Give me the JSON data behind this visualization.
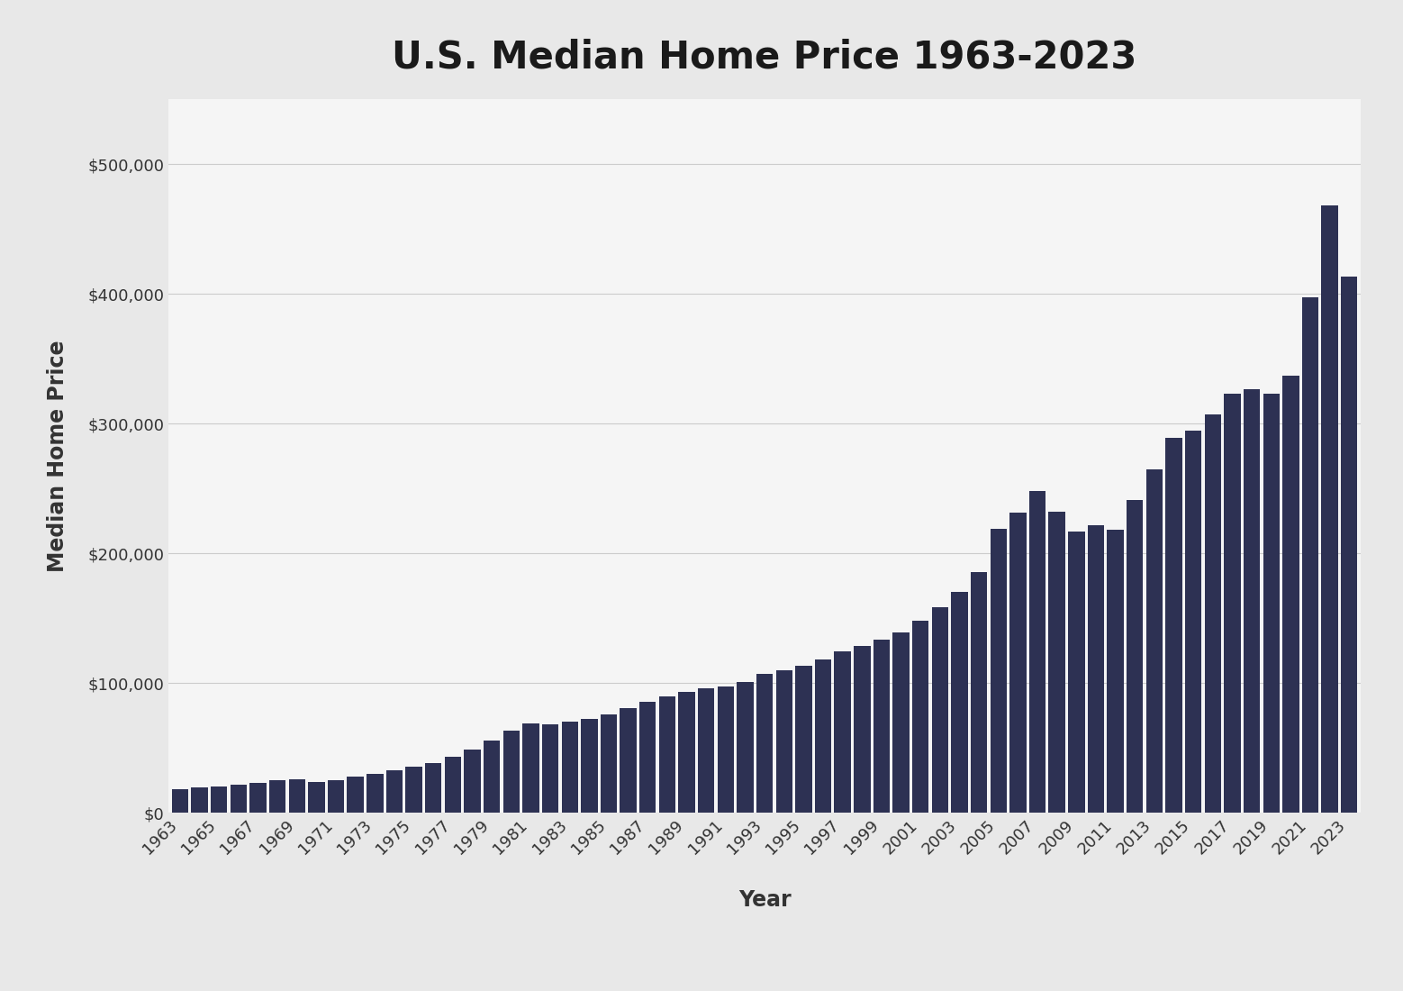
{
  "title": "U.S. Median Home Price 1963-2023",
  "xlabel": "Year",
  "ylabel": "Median Home Price",
  "outer_background_color": "#e8e8e8",
  "sidebar_color": "#d8d8d8",
  "plot_background_color": "#f5f5f5",
  "bar_color": "#2d3153",
  "years": [
    1963,
    1964,
    1965,
    1966,
    1967,
    1968,
    1969,
    1970,
    1971,
    1972,
    1973,
    1974,
    1975,
    1976,
    1977,
    1978,
    1979,
    1980,
    1981,
    1982,
    1983,
    1984,
    1985,
    1986,
    1987,
    1988,
    1989,
    1990,
    1991,
    1992,
    1993,
    1994,
    1995,
    1996,
    1997,
    1998,
    1999,
    2000,
    2001,
    2002,
    2003,
    2004,
    2005,
    2006,
    2007,
    2008,
    2009,
    2010,
    2011,
    2012,
    2013,
    2014,
    2015,
    2016,
    2017,
    2018,
    2019,
    2020,
    2021,
    2022,
    2023
  ],
  "prices": [
    18000,
    19300,
    20000,
    21400,
    22700,
    24700,
    25600,
    23400,
    25200,
    27600,
    30100,
    32900,
    35300,
    38100,
    42900,
    48700,
    55700,
    62900,
    68900,
    67800,
    70300,
    72400,
    75500,
    80300,
    85600,
    89300,
    93100,
    95500,
    97100,
    100900,
    106800,
    109900,
    113100,
    118200,
    124100,
    128400,
    133300,
    139000,
    147800,
    158300,
    170000,
    185200,
    218900,
    231200,
    247900,
    232100,
    216700,
    221800,
    218400,
    240700,
    264800,
    288900,
    294200,
    306700,
    323100,
    326400,
    322800,
    336900,
    397000,
    468000,
    413500
  ],
  "ylim": [
    0,
    550000
  ],
  "yticks": [
    0,
    100000,
    200000,
    300000,
    400000,
    500000
  ],
  "ytick_labels": [
    "$0",
    "$100,000",
    "$200,000",
    "$300,000",
    "$400,000",
    "$500,000"
  ],
  "title_fontsize": 30,
  "axis_label_fontsize": 17,
  "tick_fontsize": 13,
  "grid_color": "#cccccc",
  "grid_linewidth": 0.8
}
